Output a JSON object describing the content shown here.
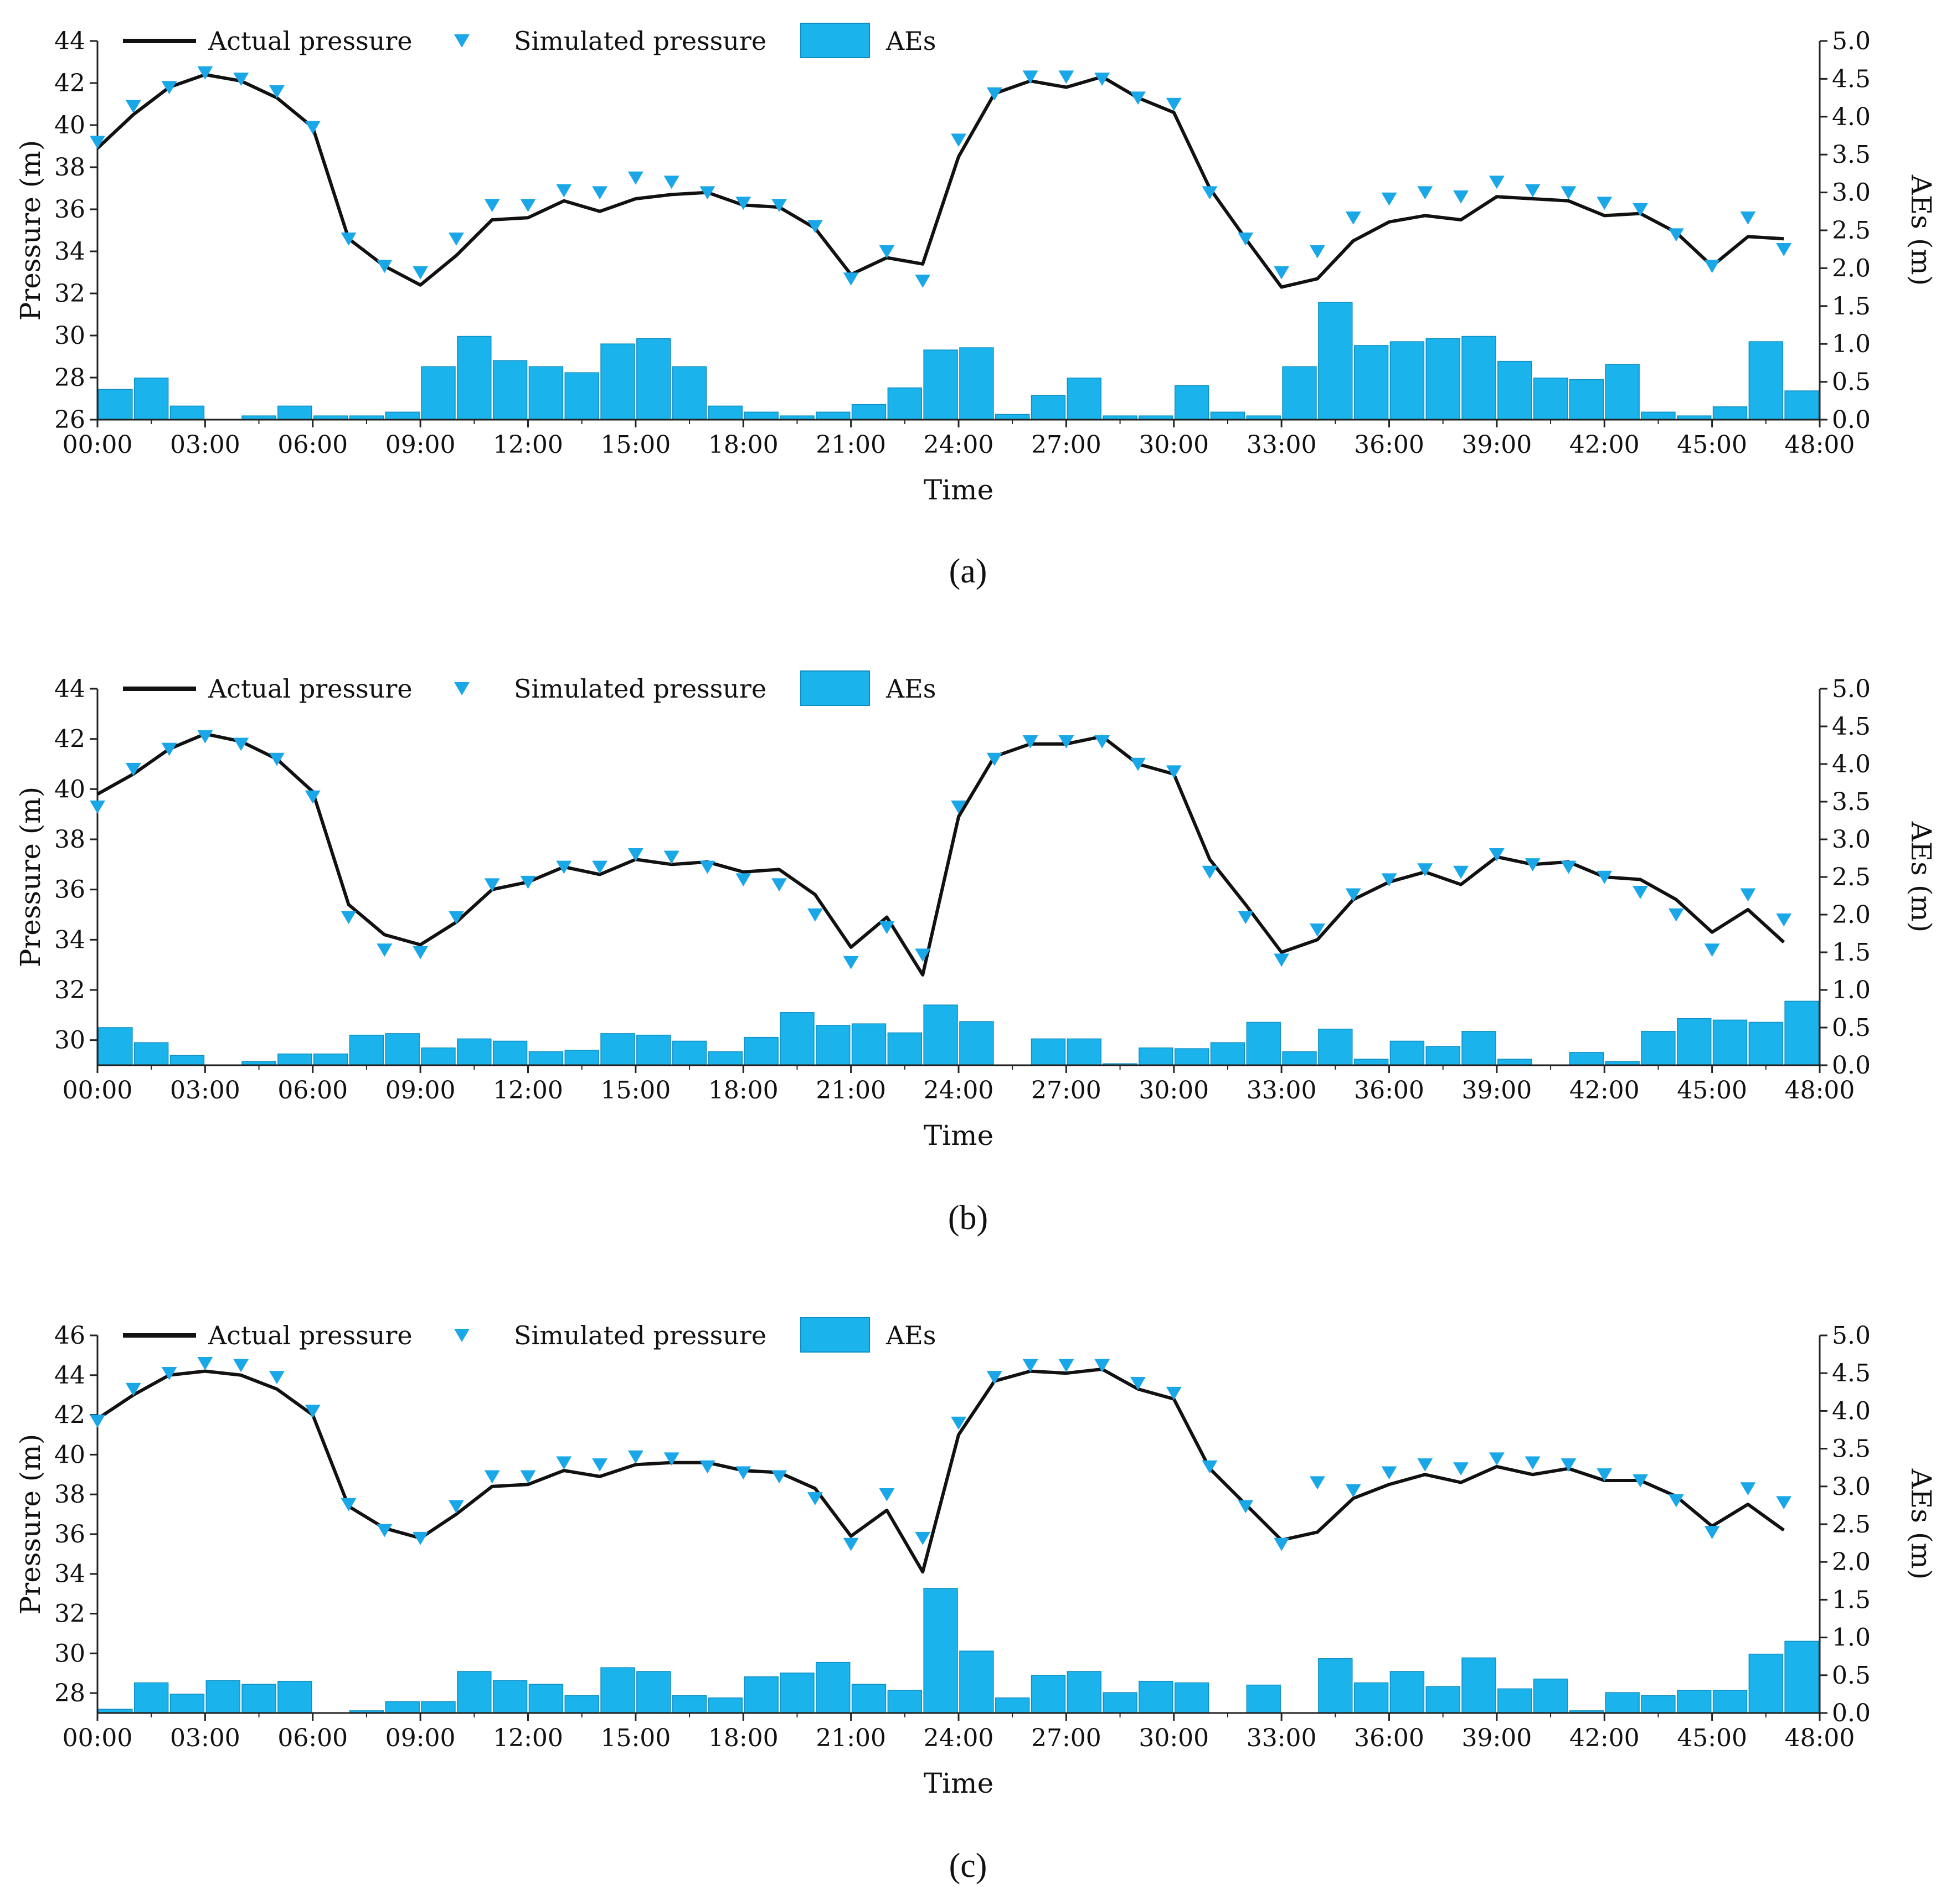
{
  "figure": {
    "panel_labels": [
      "(a)",
      "(b)",
      "(c)"
    ]
  },
  "legend": {
    "actual": "Actual pressure",
    "simulated": "Simulated pressure",
    "aes": "AEs"
  },
  "colors": {
    "line": "#111111",
    "marker": "#1aa7e8",
    "bar": "#1ab3ec",
    "bar_edge": "#0f8ec4"
  },
  "chart_data": [
    {
      "type": "line+scatter+bar",
      "panel": "(a)",
      "xlabel": "Time",
      "ylabel_left": "Pressure (m)",
      "ylabel_right": "AEs (m)",
      "xlim": [
        0,
        48
      ],
      "ylim_left": [
        26,
        44
      ],
      "ylim_right": [
        0,
        5
      ],
      "x_ticks": [
        "00:00",
        "03:00",
        "06:00",
        "09:00",
        "12:00",
        "15:00",
        "18:00",
        "21:00",
        "24:00",
        "27:00",
        "30:00",
        "33:00",
        "36:00",
        "39:00",
        "42:00",
        "45:00",
        "48:00"
      ],
      "y_ticks_left": [
        "26",
        "28",
        "30",
        "32",
        "34",
        "36",
        "38",
        "40",
        "42",
        "44"
      ],
      "y_ticks_right": [
        "0.0",
        "0.5",
        "1.0",
        "1.5",
        "2.0",
        "2.5",
        "3.0",
        "3.5",
        "4.0",
        "4.5",
        "5.0"
      ],
      "hours": [
        0,
        1,
        2,
        3,
        4,
        5,
        6,
        7,
        8,
        9,
        10,
        11,
        12,
        13,
        14,
        15,
        16,
        17,
        18,
        19,
        20,
        21,
        22,
        23,
        24,
        25,
        26,
        27,
        28,
        29,
        30,
        31,
        32,
        33,
        34,
        35,
        36,
        37,
        38,
        39,
        40,
        41,
        42,
        43,
        44,
        45,
        46,
        47
      ],
      "actual": [
        38.9,
        40.5,
        41.8,
        42.4,
        42.1,
        41.3,
        39.9,
        34.6,
        33.3,
        32.4,
        33.8,
        35.5,
        35.6,
        36.4,
        35.9,
        36.5,
        36.7,
        36.8,
        36.2,
        36.1,
        35.1,
        32.9,
        33.7,
        33.4,
        38.5,
        41.5,
        42.1,
        41.8,
        42.3,
        41.3,
        40.6,
        37.0,
        34.6,
        32.3,
        32.7,
        34.5,
        35.4,
        35.7,
        35.5,
        36.6,
        36.5,
        36.4,
        35.7,
        35.8,
        34.9,
        33.3,
        34.7,
        34.6
      ],
      "simulated": [
        39.2,
        40.9,
        41.8,
        42.5,
        42.2,
        41.6,
        39.9,
        34.6,
        33.3,
        33.0,
        34.6,
        36.2,
        36.2,
        36.9,
        36.8,
        37.5,
        37.3,
        36.8,
        36.3,
        36.2,
        35.2,
        32.7,
        34.0,
        32.6,
        39.3,
        41.5,
        42.3,
        42.3,
        42.2,
        41.3,
        41.0,
        36.8,
        34.6,
        33.0,
        34.0,
        35.6,
        36.5,
        36.8,
        36.6,
        37.3,
        36.9,
        36.8,
        36.3,
        36.0,
        34.8,
        33.3,
        35.6,
        34.1
      ],
      "aes": [
        0.4,
        0.55,
        0.18,
        0.0,
        0.05,
        0.18,
        0.05,
        0.05,
        0.1,
        0.7,
        1.1,
        0.78,
        0.7,
        0.62,
        1.0,
        1.07,
        0.7,
        0.18,
        0.1,
        0.05,
        0.1,
        0.2,
        0.42,
        0.92,
        0.95,
        0.07,
        0.32,
        0.55,
        0.05,
        0.05,
        0.45,
        0.1,
        0.05,
        0.7,
        1.55,
        0.98,
        1.03,
        1.07,
        1.1,
        0.77,
        0.55,
        0.53,
        0.73,
        0.1,
        0.05,
        0.17,
        1.03,
        0.38
      ]
    },
    {
      "type": "line+scatter+bar",
      "panel": "(b)",
      "xlabel": "Time",
      "ylabel_left": "Pressure (m)",
      "ylabel_right": "AEs (m)",
      "xlim": [
        0,
        48
      ],
      "ylim_left": [
        29,
        44
      ],
      "ylim_right": [
        0,
        5
      ],
      "x_ticks": [
        "00:00",
        "03:00",
        "06:00",
        "09:00",
        "12:00",
        "15:00",
        "18:00",
        "21:00",
        "24:00",
        "27:00",
        "30:00",
        "33:00",
        "36:00",
        "39:00",
        "42:00",
        "45:00",
        "48:00"
      ],
      "y_ticks_left": [
        "30",
        "32",
        "34",
        "36",
        "38",
        "40",
        "42",
        "44"
      ],
      "y_ticks_right": [
        "0.0",
        "0.5",
        "1.0",
        "1.5",
        "2.0",
        "2.5",
        "3.0",
        "3.5",
        "4.0",
        "4.5",
        "5.0"
      ],
      "hours": [
        0,
        1,
        2,
        3,
        4,
        5,
        6,
        7,
        8,
        9,
        10,
        11,
        12,
        13,
        14,
        15,
        16,
        17,
        18,
        19,
        20,
        21,
        22,
        23,
        24,
        25,
        26,
        27,
        28,
        29,
        30,
        31,
        32,
        33,
        34,
        35,
        36,
        37,
        38,
        39,
        40,
        41,
        42,
        43,
        44,
        45,
        46,
        47
      ],
      "actual": [
        39.8,
        40.6,
        41.6,
        42.2,
        41.9,
        41.2,
        39.9,
        35.4,
        34.2,
        33.8,
        34.7,
        36.0,
        36.3,
        36.9,
        36.6,
        37.2,
        37.0,
        37.1,
        36.7,
        36.8,
        35.8,
        33.7,
        34.9,
        32.6,
        38.9,
        41.3,
        41.8,
        41.8,
        42.1,
        41.0,
        40.6,
        37.2,
        35.4,
        33.5,
        34.0,
        35.6,
        36.3,
        36.7,
        36.2,
        37.3,
        37.0,
        37.1,
        36.5,
        36.4,
        35.6,
        34.3,
        35.2,
        33.9
      ],
      "simulated": [
        39.3,
        40.8,
        41.6,
        42.1,
        41.8,
        41.2,
        39.7,
        34.9,
        33.6,
        33.5,
        34.9,
        36.2,
        36.3,
        36.9,
        36.9,
        37.4,
        37.3,
        36.9,
        36.4,
        36.2,
        35.0,
        33.1,
        34.5,
        33.4,
        39.3,
        41.2,
        41.9,
        41.9,
        41.9,
        41.0,
        40.7,
        36.7,
        34.9,
        33.2,
        34.4,
        35.8,
        36.4,
        36.8,
        36.7,
        37.4,
        37.0,
        36.9,
        36.5,
        35.9,
        35.0,
        33.6,
        35.8,
        34.8
      ],
      "aes": [
        0.5,
        0.3,
        0.13,
        0.0,
        0.05,
        0.15,
        0.15,
        0.4,
        0.42,
        0.23,
        0.35,
        0.32,
        0.18,
        0.2,
        0.42,
        0.4,
        0.32,
        0.18,
        0.37,
        0.7,
        0.53,
        0.55,
        0.43,
        0.8,
        0.58,
        0.0,
        0.35,
        0.35,
        0.02,
        0.23,
        0.22,
        0.3,
        0.57,
        0.18,
        0.48,
        0.08,
        0.32,
        0.25,
        0.45,
        0.08,
        0.0,
        0.17,
        0.05,
        0.45,
        0.62,
        0.6,
        0.57,
        0.85
      ]
    },
    {
      "type": "line+scatter+bar",
      "panel": "(c)",
      "xlabel": "Time",
      "ylabel_left": "Pressure (m)",
      "ylabel_right": "AEs (m)",
      "xlim": [
        0,
        48
      ],
      "ylim_left": [
        27,
        46
      ],
      "ylim_right": [
        0,
        5
      ],
      "x_ticks": [
        "00:00",
        "03:00",
        "06:00",
        "09:00",
        "12:00",
        "15:00",
        "18:00",
        "21:00",
        "24:00",
        "27:00",
        "30:00",
        "33:00",
        "36:00",
        "39:00",
        "42:00",
        "45:00",
        "48:00"
      ],
      "y_ticks_left": [
        "28",
        "30",
        "32",
        "34",
        "36",
        "38",
        "40",
        "42",
        "44",
        "46"
      ],
      "y_ticks_right": [
        "0.0",
        "0.5",
        "1.0",
        "1.5",
        "2.0",
        "2.5",
        "3.0",
        "3.5",
        "4.0",
        "4.5",
        "5.0"
      ],
      "hours": [
        0,
        1,
        2,
        3,
        4,
        5,
        6,
        7,
        8,
        9,
        10,
        11,
        12,
        13,
        14,
        15,
        16,
        17,
        18,
        19,
        20,
        21,
        22,
        23,
        24,
        25,
        26,
        27,
        28,
        29,
        30,
        31,
        32,
        33,
        34,
        35,
        36,
        37,
        38,
        39,
        40,
        41,
        42,
        43,
        44,
        45,
        46,
        47
      ],
      "actual": [
        41.8,
        43.0,
        44.0,
        44.2,
        44.0,
        43.3,
        42.0,
        37.4,
        36.3,
        35.8,
        37.0,
        38.4,
        38.5,
        39.2,
        38.9,
        39.5,
        39.6,
        39.6,
        39.2,
        39.1,
        38.3,
        35.9,
        37.2,
        34.1,
        41.0,
        43.7,
        44.2,
        44.1,
        44.3,
        43.3,
        42.8,
        39.3,
        37.5,
        35.7,
        36.1,
        37.8,
        38.5,
        39.0,
        38.6,
        39.4,
        39.0,
        39.3,
        38.7,
        38.7,
        37.9,
        36.4,
        37.5,
        36.2
      ],
      "simulated": [
        41.7,
        43.3,
        44.1,
        44.6,
        44.5,
        43.9,
        42.2,
        37.5,
        36.2,
        35.8,
        37.4,
        38.9,
        38.9,
        39.6,
        39.5,
        39.9,
        39.8,
        39.4,
        39.1,
        38.9,
        37.8,
        35.5,
        38.0,
        35.8,
        41.6,
        43.9,
        44.5,
        44.5,
        44.5,
        43.6,
        43.1,
        39.4,
        37.4,
        35.5,
        38.6,
        38.2,
        39.1,
        39.5,
        39.3,
        39.8,
        39.6,
        39.5,
        39.0,
        38.7,
        37.7,
        36.1,
        38.3,
        37.6
      ],
      "aes": [
        0.05,
        0.4,
        0.25,
        0.43,
        0.38,
        0.42,
        0.0,
        0.03,
        0.15,
        0.15,
        0.55,
        0.43,
        0.38,
        0.23,
        0.6,
        0.55,
        0.23,
        0.2,
        0.48,
        0.53,
        0.67,
        0.38,
        0.3,
        1.65,
        0.82,
        0.2,
        0.5,
        0.55,
        0.27,
        0.42,
        0.4,
        0.0,
        0.37,
        0.0,
        0.72,
        0.4,
        0.55,
        0.35,
        0.73,
        0.32,
        0.45,
        0.03,
        0.27,
        0.23,
        0.3,
        0.3,
        0.78,
        0.95
      ]
    }
  ]
}
